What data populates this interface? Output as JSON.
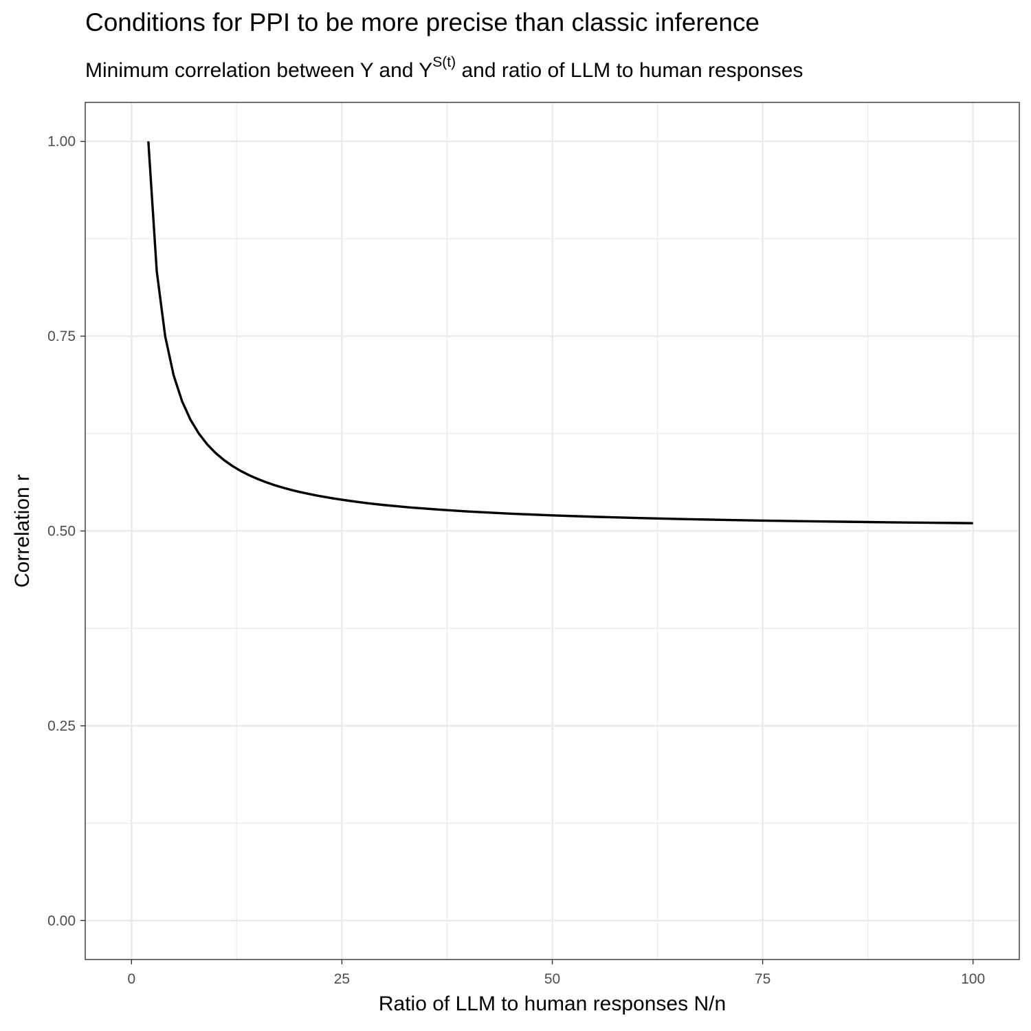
{
  "chart_data": {
    "type": "line",
    "title": "Conditions for PPI to be more precise than classic inference",
    "subtitle": {
      "before": "Minimum correlation between Y and Y",
      "superscript": "S(t)",
      "after": " and ratio of LLM to human responses"
    },
    "xlabel": "Ratio of LLM to human responses N/n",
    "ylabel": "Correlation r",
    "xlim": [
      -5.5,
      105.5
    ],
    "ylim": [
      -0.05,
      1.05
    ],
    "x_ticks": [
      0,
      25,
      50,
      75,
      100
    ],
    "x_tick_labels": [
      "0",
      "25",
      "50",
      "75",
      "100"
    ],
    "y_ticks": [
      0,
      0.25,
      0.5,
      0.75,
      1
    ],
    "y_tick_labels": [
      "0.00",
      "0.25",
      "0.50",
      "0.75",
      "1.00"
    ],
    "x_minor_ticks": [
      12.5,
      37.5,
      62.5,
      87.5
    ],
    "y_minor_ticks": [
      0.125,
      0.375,
      0.625,
      0.875
    ],
    "grid": true,
    "line_color": "#000000",
    "series": [
      {
        "x": [
          2,
          3,
          4,
          5,
          6,
          7,
          8,
          9,
          10,
          11,
          12,
          13,
          14,
          15,
          16,
          17,
          18,
          19,
          20,
          22,
          24,
          26,
          28,
          30,
          33,
          36,
          40,
          45,
          50,
          55,
          60,
          65,
          70,
          75,
          80,
          85,
          90,
          95,
          100
        ],
        "values": [
          1.0,
          0.8333,
          0.75,
          0.7,
          0.6667,
          0.6429,
          0.625,
          0.6111,
          0.6,
          0.5909,
          0.5833,
          0.5769,
          0.5714,
          0.5667,
          0.5625,
          0.5588,
          0.5556,
          0.5526,
          0.55,
          0.5455,
          0.5417,
          0.5385,
          0.5357,
          0.5333,
          0.5303,
          0.5278,
          0.525,
          0.5222,
          0.52,
          0.5182,
          0.5167,
          0.5154,
          0.5143,
          0.5133,
          0.5125,
          0.5118,
          0.5111,
          0.5105,
          0.51
        ]
      }
    ]
  }
}
